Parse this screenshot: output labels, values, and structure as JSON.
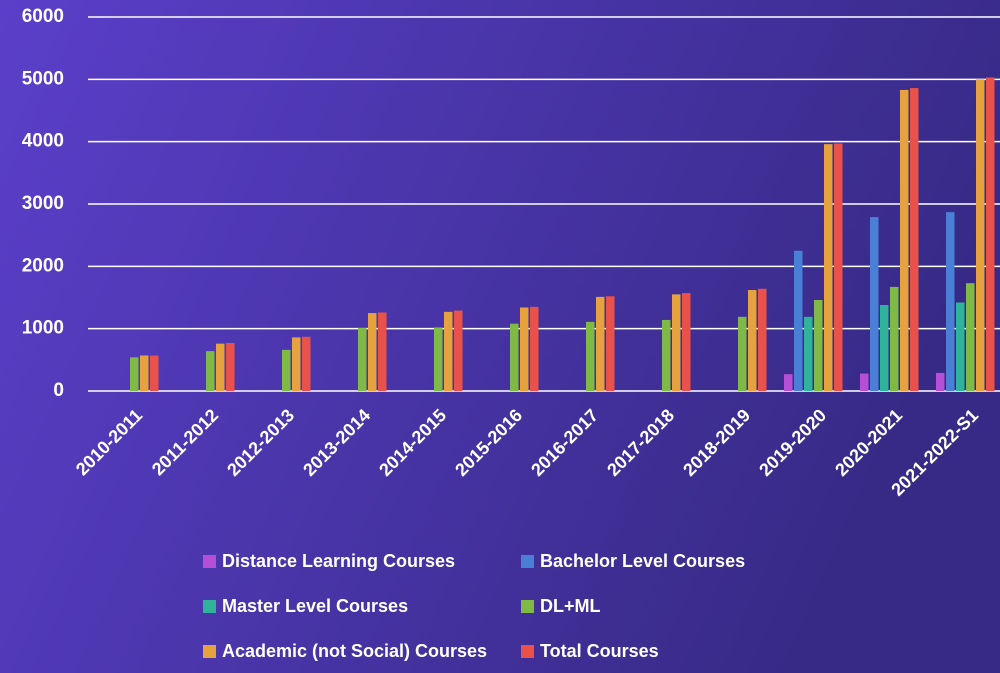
{
  "chart_data": {
    "type": "bar",
    "categories": [
      "2010-2011",
      "2011-2012",
      "2012-2013",
      "2013-2014",
      "2014-2015",
      "2015-2016",
      "2016-2017",
      "2017-2018",
      "2018-2019",
      "2019-2020",
      "2020-2021",
      "2021-2022-S1"
    ],
    "series": [
      {
        "name": "Distance Learning Courses",
        "color": "#b44fd6",
        "values": [
          null,
          null,
          null,
          null,
          null,
          null,
          null,
          null,
          null,
          270,
          280,
          290
        ]
      },
      {
        "name": "Bachelor Level Courses",
        "color": "#4a7fd6",
        "values": [
          null,
          null,
          null,
          null,
          null,
          null,
          null,
          null,
          null,
          2250,
          2790,
          2870
        ]
      },
      {
        "name": "Master Level Courses",
        "color": "#2fb39a",
        "values": [
          null,
          null,
          null,
          null,
          null,
          null,
          null,
          null,
          null,
          1190,
          1380,
          1420
        ]
      },
      {
        "name": "DL+ML",
        "color": "#7fba45",
        "values": [
          540,
          640,
          660,
          1010,
          1020,
          1080,
          1110,
          1140,
          1190,
          1460,
          1670,
          1730
        ]
      },
      {
        "name": "Academic (not Social) Courses",
        "color": "#e6a23c",
        "values": [
          570,
          760,
          860,
          1250,
          1270,
          1340,
          1510,
          1550,
          1620,
          3960,
          4830,
          5000
        ]
      },
      {
        "name": "Total Courses",
        "color": "#e8524a",
        "values": [
          570,
          770,
          870,
          1260,
          1290,
          1350,
          1520,
          1570,
          1640,
          3970,
          4860,
          5030
        ]
      }
    ],
    "ylim": [
      0,
      6000
    ],
    "yticks": [
      0,
      1000,
      2000,
      3000,
      4000,
      5000,
      6000
    ],
    "grid": true
  }
}
